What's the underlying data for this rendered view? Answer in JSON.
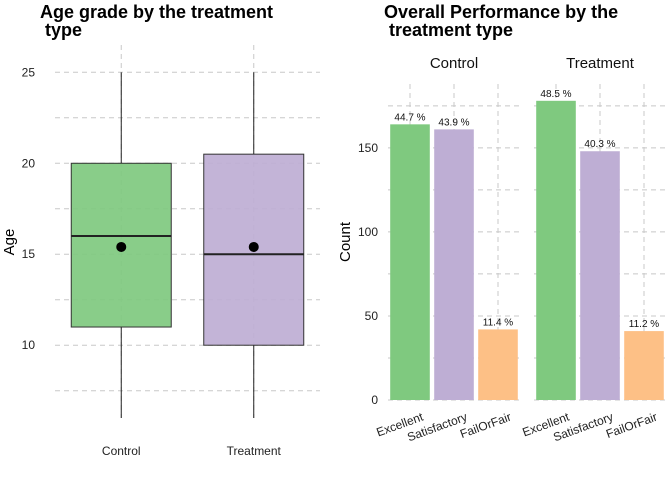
{
  "chart_data": [
    {
      "type": "box",
      "title": "Age grade by the treatment\n type",
      "xlabel": "",
      "ylabel": "Age",
      "ylim": [
        6,
        26.5
      ],
      "yticks": [
        10,
        15,
        20,
        25
      ],
      "grid": true,
      "categories": [
        "Control",
        "Treatment"
      ],
      "boxes": [
        {
          "category": "Control",
          "min": 6,
          "q1": 11,
          "median": 16,
          "q3": 20,
          "max": 25,
          "mean": 15.4,
          "color": "#7fc97f"
        },
        {
          "category": "Treatment",
          "min": 6,
          "q1": 10,
          "median": 15,
          "q3": 20.5,
          "max": 25,
          "mean": 15.4,
          "color": "#beaed4"
        }
      ]
    },
    {
      "type": "bar",
      "title": "Overall Performance by the\n treatment type",
      "xlabel": "",
      "ylabel": "Count",
      "ylim": [
        0,
        188
      ],
      "yticks": [
        0,
        50,
        100,
        150
      ],
      "grid": true,
      "facets": [
        "Control",
        "Treatment"
      ],
      "categories": [
        "Excellent",
        "Satisfactory",
        "FailOrFair"
      ],
      "colors": [
        "#7fc97f",
        "#beaed4",
        "#fdc086"
      ],
      "series": [
        {
          "facet": "Control",
          "values": [
            164,
            161,
            42
          ],
          "labels": [
            "44.7 %",
            "43.9 %",
            "11.4 %"
          ]
        },
        {
          "facet": "Treatment",
          "values": [
            178,
            148,
            41
          ],
          "labels": [
            "48.5 %",
            "40.3 %",
            "11.2 %"
          ]
        }
      ]
    }
  ]
}
